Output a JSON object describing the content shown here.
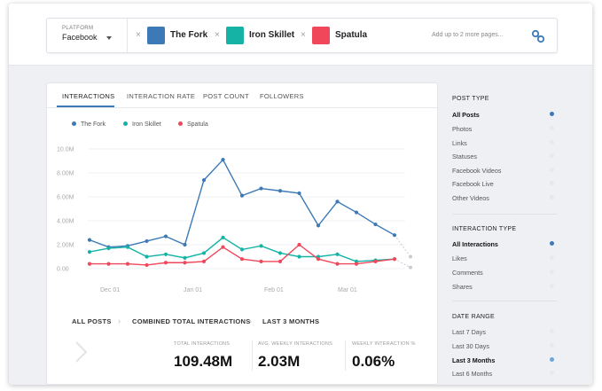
{
  "platform": {
    "label": "PLATFORM",
    "value": "Facebook"
  },
  "pages": [
    {
      "name": "The Fork",
      "color": "#3d7ab5"
    },
    {
      "name": "Iron Skillet",
      "color": "#14b3a6"
    },
    {
      "name": "Spatula",
      "color": "#f0475b"
    }
  ],
  "add_more": "Add up to 2 more pages...",
  "tabs": [
    "INTERACTIONS",
    "INTERACTION RATE",
    "POST COUNT",
    "FOLLOWERS"
  ],
  "chart_data": {
    "type": "line",
    "y_ticks": [
      "10.0M",
      "8.00M",
      "6.00M",
      "4.00M",
      "2.00M",
      "0.00"
    ],
    "x_ticks": [
      "Dec 01",
      "Jan 01",
      "Feb 01",
      "Mar 01"
    ],
    "ylim": [
      0,
      10
    ],
    "series": [
      {
        "name": "The Fork",
        "color": "#3d7ab5",
        "values": [
          2.4,
          1.8,
          1.9,
          2.3,
          2.7,
          2.0,
          7.4,
          9.1,
          6.1,
          6.7,
          6.5,
          6.3,
          3.6,
          5.6,
          4.7,
          3.7,
          2.8
        ],
        "projection": [
          2.8,
          1.0
        ]
      },
      {
        "name": "Iron Skillet",
        "color": "#14b3a6",
        "values": [
          1.4,
          1.7,
          1.8,
          1.0,
          1.2,
          0.9,
          1.3,
          2.6,
          1.6,
          1.9,
          1.3,
          1.0,
          1.0,
          1.2,
          0.6,
          0.7,
          0.8
        ],
        "projection": [
          0.8,
          0.1
        ]
      },
      {
        "name": "Spatula",
        "color": "#f0475b",
        "values": [
          0.4,
          0.4,
          0.4,
          0.3,
          0.5,
          0.5,
          0.6,
          1.8,
          0.8,
          0.6,
          0.6,
          2.0,
          0.8,
          0.4,
          0.4,
          0.6,
          0.8
        ],
        "projection": []
      }
    ]
  },
  "breadcrumbs": [
    "ALL POSTS",
    "COMBINED TOTAL INTERACTIONS",
    "LAST 3 MONTHS"
  ],
  "stats": [
    {
      "label": "TOTAL INTERACTIONS",
      "value": "109.48M"
    },
    {
      "label": "AVG. WEEKLY INTERACTIONS",
      "value": "2.03M"
    },
    {
      "label": "WEEKLY INTERACTION %",
      "value": "0.06%"
    }
  ],
  "sidebar": {
    "post_type": {
      "title": "POST TYPE",
      "items": [
        "All Posts",
        "Photos",
        "Links",
        "Statuses",
        "Facebook Videos",
        "Facebook Live",
        "Other Videos"
      ]
    },
    "interaction_type": {
      "title": "INTERACTION TYPE",
      "items": [
        "All Interactions",
        "Likes",
        "Comments",
        "Shares"
      ]
    },
    "date_range": {
      "title": "DATE RANGE",
      "items": [
        "Last 7 Days",
        "Last 30 Days",
        "Last 3 Months",
        "Last 6 Months"
      ]
    }
  },
  "colors": {
    "accent": "#3d7ab5",
    "accent_light": "#6fa5d6"
  }
}
